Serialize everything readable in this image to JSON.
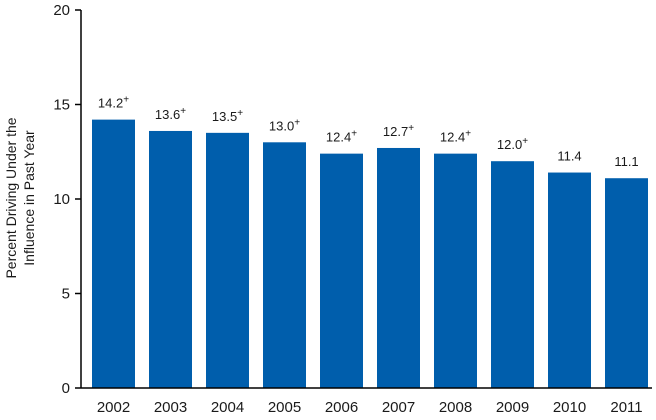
{
  "chart_data": {
    "type": "bar",
    "title": "",
    "xlabel": "",
    "ylabel_lines": [
      "Percent Driving Under the",
      "Influence in Past Year"
    ],
    "categories": [
      "2002",
      "2003",
      "2004",
      "2005",
      "2006",
      "2007",
      "2008",
      "2009",
      "2010",
      "2011"
    ],
    "values": [
      14.2,
      13.6,
      13.5,
      13.0,
      12.4,
      12.7,
      12.4,
      12.0,
      11.4,
      11.1
    ],
    "data_labels": [
      "14.2",
      "13.6",
      "13.5",
      "13.0",
      "12.4",
      "12.7",
      "12.4",
      "12.0",
      "11.4",
      "11.1"
    ],
    "significance_marker": "+",
    "significant": [
      true,
      true,
      true,
      true,
      true,
      true,
      true,
      true,
      false,
      false
    ],
    "ylim": [
      0,
      20
    ],
    "yticks": [
      0,
      5,
      10,
      15,
      20
    ],
    "grid": false,
    "legend": "none",
    "bar_color": "#005eac",
    "axis_color": "#000000"
  }
}
